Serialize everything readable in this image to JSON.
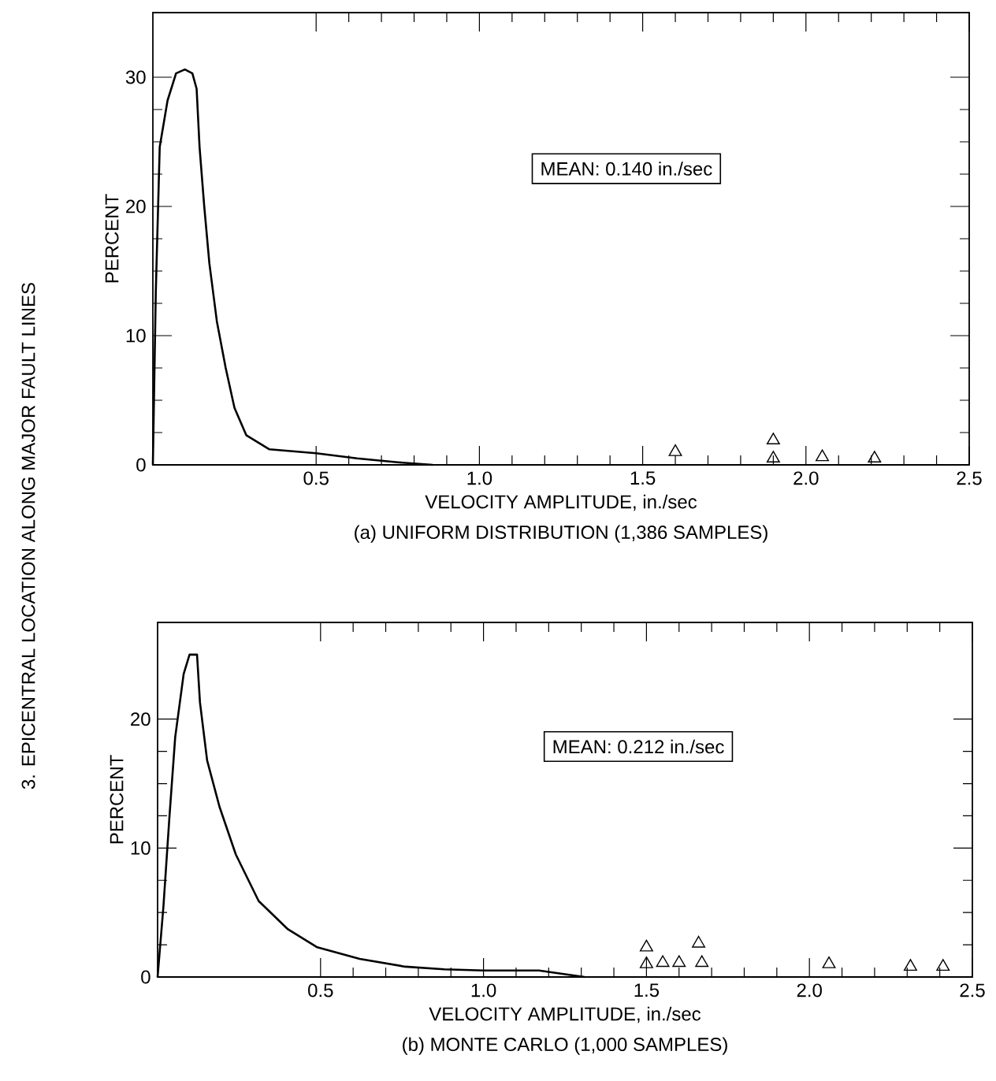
{
  "chart_data": [
    {
      "type": "line",
      "title": "(a) UNIFORM DISTRIBUTION (1,386 SAMPLES)",
      "xlabel": "VELOCITY AMPLITUDE, in./sec",
      "ylabel": "PERCENT",
      "annotations": [
        "MEAN: 0.140 in./sec",
        "3. EPICENTRAL LOCATION ALONG MAJOR FAULT LINES"
      ],
      "xlim": [
        0,
        2.5
      ],
      "ylim": [
        0,
        35
      ],
      "xticks": [
        {
          "value": 0.5,
          "label": "0.5"
        },
        {
          "value": 1,
          "label": "1.0"
        },
        {
          "value": 1.5,
          "label": "1.5"
        },
        {
          "value": 2,
          "label": "2.0"
        },
        {
          "value": 2.5,
          "label": "2.5"
        }
      ],
      "yticks": [
        0,
        10,
        20,
        30
      ],
      "series": [
        {
          "color": "#000000",
          "line_style": "solid",
          "x": [
            0,
            0.009,
            0.021,
            0.045,
            0.071,
            0.098,
            0.121,
            0.134,
            0.143,
            0.157,
            0.173,
            0.196,
            0.223,
            0.25,
            0.286,
            0.357,
            0.5,
            0.625,
            0.75,
            0.857
          ],
          "values": [
            0,
            13.4,
            24.6,
            28.2,
            30.3,
            30.6,
            30.3,
            29.1,
            24.6,
            20.1,
            15.6,
            11.1,
            7.5,
            4.4,
            2.3,
            1.2,
            0.9,
            0.5,
            0.2,
            0
          ]
        },
        {
          "type": "scatter",
          "color": "#000000",
          "marker": "triangle",
          "x": [
            1.6,
            1.9,
            1.9,
            2.05,
            2.21
          ],
          "values": [
            1.0,
            1.9,
            0.5,
            0.6,
            0.5
          ]
        }
      ]
    },
    {
      "type": "line",
      "title": "(b) MONTE CARLO (1,000 SAMPLES)",
      "xlabel": "VELOCITY AMPLITUDE, in./sec",
      "ylabel": "PERCENT",
      "annotations": [
        "MEAN: 0.212 in./sec"
      ],
      "xlim": [
        0,
        2.5
      ],
      "ylim": [
        0,
        27.5
      ],
      "xticks": [
        {
          "value": 0.5,
          "label": "0.5"
        },
        {
          "value": 1,
          "label": "1.0"
        },
        {
          "value": 1.5,
          "label": "1.5"
        },
        {
          "value": 2,
          "label": "2.0"
        },
        {
          "value": 2.5,
          "label": "2.5"
        }
      ],
      "yticks": [
        0,
        10,
        20
      ],
      "series": [
        {
          "color": "#000000",
          "line_style": "solid",
          "x": [
            0,
            0.018,
            0.036,
            0.054,
            0.08,
            0.098,
            0.121,
            0.13,
            0.152,
            0.19,
            0.24,
            0.31,
            0.4,
            0.49,
            0.62,
            0.76,
            0.88,
            1.0,
            1.17,
            1.31
          ],
          "values": [
            0,
            5.5,
            12.3,
            18.6,
            23.5,
            25,
            25,
            21.3,
            16.8,
            13.2,
            9.5,
            5.9,
            3.7,
            2.3,
            1.4,
            0.8,
            0.6,
            0.5,
            0.5,
            0
          ]
        },
        {
          "type": "scatter",
          "color": "#000000",
          "marker": "triangle",
          "x": [
            1.5,
            1.5,
            1.55,
            1.6,
            1.66,
            1.67,
            2.06,
            2.31,
            2.41
          ],
          "values": [
            2.3,
            1.0,
            1.1,
            1.1,
            2.6,
            1.1,
            1.0,
            0.8,
            0.8
          ]
        }
      ]
    }
  ]
}
